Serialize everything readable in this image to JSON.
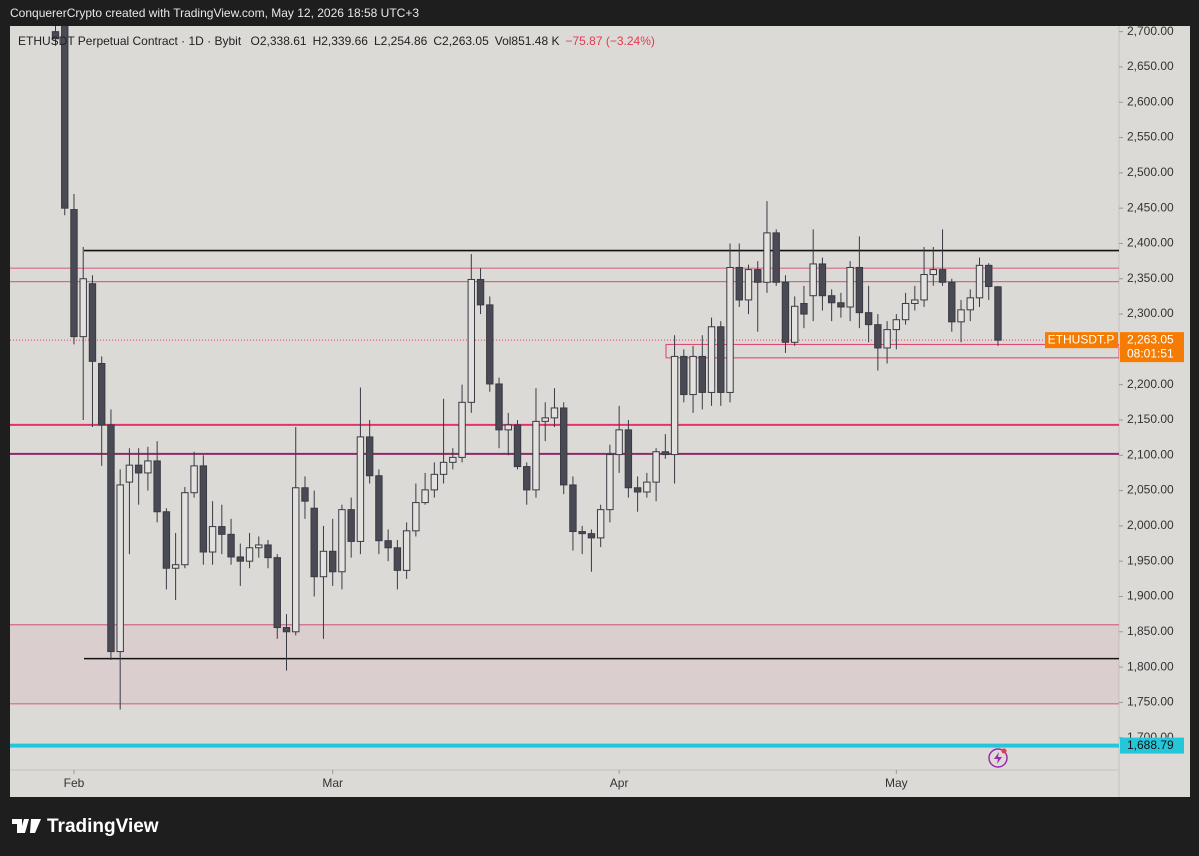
{
  "caption": "ConquererCrypto created with TradingView.com, May 12, 2026 18:58 UTC+3",
  "footer": "TradingView",
  "chart_data": {
    "type": "candlestick",
    "symbol": "ETHUSDT Perpetual Contract · 1D · Bybit",
    "legend_items": [
      "O2,338.61",
      "H2,339.66",
      "L2,254.86",
      "C2,263.05",
      "Vol851.48 K",
      "−75.87 (−3.24%)"
    ],
    "open": [
      2700,
      2720,
      2448,
      2268,
      2343,
      2230,
      2143,
      1822,
      2062,
      2086,
      2075,
      2092,
      2020,
      1940,
      1945,
      2047,
      2085,
      1963,
      1999,
      1988,
      1956,
      1950,
      1969,
      1973,
      1955,
      1856,
      1850,
      2054,
      2025,
      1928,
      1964,
      1935,
      2023,
      1978,
      2126,
      2071,
      1979,
      1969,
      1937,
      1993,
      2033,
      2051,
      2073,
      2090,
      2097,
      2175,
      2349,
      2313,
      2201,
      2136,
      2143,
      2084,
      2051,
      2148,
      2153,
      2167,
      2058,
      1992,
      1989,
      1983,
      2023,
      2101,
      2136,
      2054,
      2048,
      2062,
      2105,
      2101,
      2240,
      2186,
      2240,
      2189,
      2282,
      2189,
      2366,
      2320,
      2363,
      2345,
      2415,
      2345,
      2260,
      2315,
      2326,
      2371,
      2326,
      2316,
      2310,
      2366,
      2302,
      2285,
      2252,
      2278,
      2292,
      2315,
      2320,
      2356,
      2363,
      2345,
      2289,
      2306,
      2323,
      2369,
      2338.61
    ],
    "high": [
      2740,
      2740,
      2470,
      2395,
      2355,
      2240,
      2165,
      2080,
      2110,
      2110,
      2112,
      2120,
      2025,
      1990,
      2055,
      2105,
      2100,
      2035,
      2030,
      2010,
      1975,
      1990,
      1985,
      1980,
      1960,
      1875,
      2140,
      2070,
      2050,
      2000,
      2010,
      2030,
      2040,
      2196,
      2150,
      2080,
      1995,
      1980,
      2005,
      2060,
      2075,
      2090,
      2180,
      2110,
      2200,
      2385,
      2365,
      2325,
      2210,
      2160,
      2150,
      2090,
      2195,
      2175,
      2195,
      2175,
      2070,
      2000,
      1995,
      2030,
      2115,
      2170,
      2150,
      2070,
      2075,
      2110,
      2130,
      2270,
      2250,
      2255,
      2270,
      2295,
      2290,
      2400,
      2400,
      2370,
      2375,
      2460,
      2420,
      2355,
      2325,
      2340,
      2420,
      2380,
      2335,
      2330,
      2375,
      2410,
      2340,
      2300,
      2290,
      2300,
      2330,
      2340,
      2395,
      2395,
      2420,
      2350,
      2320,
      2335,
      2380,
      2372,
      2339.66
    ],
    "low": [
      2680,
      2440,
      2257,
      2150,
      2140,
      2085,
      1810,
      1740,
      1960,
      2030,
      2050,
      2005,
      1910,
      1895,
      1940,
      2040,
      1945,
      1945,
      1960,
      1945,
      1915,
      1940,
      1955,
      1940,
      1840,
      1795,
      1845,
      2010,
      1900,
      1840,
      1915,
      1910,
      1955,
      1960,
      2060,
      1960,
      1950,
      1910,
      1925,
      1985,
      2030,
      2040,
      2060,
      2080,
      2090,
      2160,
      2300,
      2190,
      2110,
      2100,
      2080,
      2030,
      2040,
      2120,
      2140,
      2045,
      1965,
      1960,
      1935,
      1970,
      2005,
      2075,
      2040,
      2020,
      2040,
      2035,
      2095,
      2060,
      2175,
      2160,
      2165,
      2170,
      2170,
      2175,
      2310,
      2300,
      2275,
      2330,
      2340,
      2245,
      2255,
      2280,
      2290,
      2305,
      2290,
      2295,
      2290,
      2280,
      2260,
      2220,
      2230,
      2250,
      2285,
      2305,
      2310,
      2340,
      2340,
      2275,
      2260,
      2290,
      2310,
      2320,
      2254.86
    ],
    "close": [
      2690,
      2450,
      2268,
      2350,
      2233,
      2143,
      1822,
      2058,
      2086,
      2075,
      2092,
      2020,
      1940,
      1945,
      2047,
      2085,
      1963,
      1999,
      1988,
      1956,
      1950,
      1969,
      1973,
      1955,
      1856,
      1850,
      2054,
      2035,
      1928,
      1964,
      1935,
      2023,
      1978,
      2126,
      2071,
      1979,
      1969,
      1937,
      1993,
      2033,
      2051,
      2073,
      2090,
      2097,
      2175,
      2349,
      2313,
      2201,
      2136,
      2143,
      2084,
      2051,
      2148,
      2153,
      2167,
      2058,
      1992,
      1989,
      1983,
      2023,
      2101,
      2136,
      2054,
      2048,
      2062,
      2105,
      2101,
      2240,
      2186,
      2240,
      2189,
      2282,
      2189,
      2366,
      2320,
      2363,
      2345,
      2415,
      2345,
      2260,
      2311,
      2300,
      2371,
      2326,
      2316,
      2310,
      2366,
      2302,
      2285,
      2252,
      2278,
      2292,
      2315,
      2320,
      2356,
      2363,
      2345,
      2289,
      2306,
      2323,
      2369,
      2339,
      2263.05
    ],
    "up_color": "#e4e2de",
    "down_color": "#4a4a55",
    "xticks": [
      {
        "value": 2,
        "label": "Feb"
      },
      {
        "value": 30,
        "label": "Mar"
      },
      {
        "value": 61,
        "label": "Apr"
      },
      {
        "value": 91,
        "label": "May"
      }
    ],
    "ylim": [
      1616,
      2708
    ],
    "yticks": [
      {
        "value": 1700,
        "label": "1,700.00"
      },
      {
        "value": 1750,
        "label": "1,750.00"
      },
      {
        "value": 1800,
        "label": "1,800.00"
      },
      {
        "value": 1850,
        "label": "1,850.00"
      },
      {
        "value": 1900,
        "label": "1,900.00"
      },
      {
        "value": 1950,
        "label": "1,950.00"
      },
      {
        "value": 2000,
        "label": "2,000.00"
      },
      {
        "value": 2050,
        "label": "2,050.00"
      },
      {
        "value": 2100,
        "label": "2,100.00"
      },
      {
        "value": 2150,
        "label": "2,150.00"
      },
      {
        "value": 2200,
        "label": "2,200.00"
      },
      {
        "value": 2250,
        "label": "2,250.00"
      },
      {
        "value": 2300,
        "label": "2,300.00"
      },
      {
        "value": 2350,
        "label": "2,350.00"
      },
      {
        "value": 2400,
        "label": "2,400.00"
      },
      {
        "value": 2450,
        "label": "2,450.00"
      },
      {
        "value": 2500,
        "label": "2,500.00"
      },
      {
        "value": 2550,
        "label": "2,550.00"
      },
      {
        "value": 2600,
        "label": "2,600.00"
      },
      {
        "value": 2650,
        "label": "2,650.00"
      },
      {
        "value": 2700,
        "label": "2,700.00"
      }
    ],
    "levels": [
      {
        "value": 2390,
        "color": "#111111",
        "ray": true
      },
      {
        "value": 1812,
        "color": "#111111",
        "ray": true
      },
      {
        "value": 2365,
        "color": "#d06a8c"
      },
      {
        "value": 2346,
        "color": "#d06a8c"
      },
      {
        "value": 2143,
        "color": "#e8306a"
      },
      {
        "value": 2102,
        "color": "#8a2a66"
      }
    ],
    "zones": [
      {
        "low": 1748,
        "high": 1860,
        "color": "#d06a8c"
      }
    ],
    "box": {
      "low": 2238,
      "high": 2257,
      "color": "#e0406a"
    },
    "last_price": {
      "value": 2263.05,
      "label": "2,263.05",
      "symbol": "ETHUSDT.P",
      "countdown": "08:01:51",
      "color": "#f57c00"
    },
    "support": {
      "value": 1688.79,
      "label": "1,688.79",
      "color": "#26c6da"
    }
  }
}
